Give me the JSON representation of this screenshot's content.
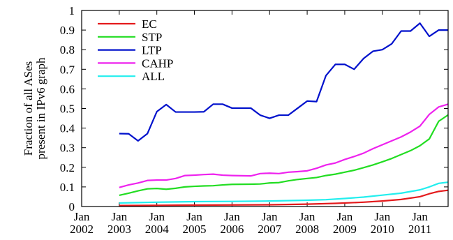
{
  "chart_data": {
    "type": "line",
    "title": "",
    "xlabel": "",
    "ylabel": [
      "Fraction of all ASes",
      "present in IPv6 graph"
    ],
    "xlim": [
      2002.0,
      2011.75
    ],
    "ylim": [
      0,
      1
    ],
    "grid": false,
    "legend_position": "top-left",
    "x_ticks": [
      {
        "value": 2002,
        "label": [
          "Jan",
          "2002"
        ]
      },
      {
        "value": 2003,
        "label": [
          "Jan",
          "2003"
        ]
      },
      {
        "value": 2004,
        "label": [
          "Jan",
          "2004"
        ]
      },
      {
        "value": 2005,
        "label": [
          "Jan",
          "2005"
        ]
      },
      {
        "value": 2006,
        "label": [
          "Jan",
          "2006"
        ]
      },
      {
        "value": 2007,
        "label": [
          "Jan",
          "2007"
        ]
      },
      {
        "value": 2008,
        "label": [
          "Jan",
          "2008"
        ]
      },
      {
        "value": 2009,
        "label": [
          "Jan",
          "2009"
        ]
      },
      {
        "value": 2010,
        "label": [
          "Jan",
          "2010"
        ]
      },
      {
        "value": 2011,
        "label": [
          "Jan",
          "2011"
        ]
      }
    ],
    "y_ticks": [
      {
        "value": 0,
        "label": "0"
      },
      {
        "value": 0.1,
        "label": "0.1"
      },
      {
        "value": 0.2,
        "label": "0.2"
      },
      {
        "value": 0.3,
        "label": "0.3"
      },
      {
        "value": 0.4,
        "label": "0.4"
      },
      {
        "value": 0.5,
        "label": "0.5"
      },
      {
        "value": 0.6,
        "label": "0.6"
      },
      {
        "value": 0.7,
        "label": "0.7"
      },
      {
        "value": 0.8,
        "label": "0.8"
      },
      {
        "value": 0.9,
        "label": "0.9"
      },
      {
        "value": 1,
        "label": "1"
      }
    ],
    "series": [
      {
        "name": "EC",
        "color": "#e41a1c",
        "points": [
          [
            2003.0,
            0.005
          ],
          [
            2004.0,
            0.006
          ],
          [
            2005.0,
            0.007
          ],
          [
            2006.0,
            0.008
          ],
          [
            2007.0,
            0.009
          ],
          [
            2008.0,
            0.012
          ],
          [
            2008.75,
            0.016
          ],
          [
            2009.5,
            0.022
          ],
          [
            2010.0,
            0.028
          ],
          [
            2010.5,
            0.036
          ],
          [
            2011.0,
            0.05
          ],
          [
            2011.25,
            0.065
          ],
          [
            2011.5,
            0.077
          ],
          [
            2011.75,
            0.083
          ]
        ]
      },
      {
        "name": "STP",
        "color": "#22dd22",
        "points": [
          [
            2003.0,
            0.057
          ],
          [
            2003.25,
            0.068
          ],
          [
            2003.5,
            0.08
          ],
          [
            2003.75,
            0.09
          ],
          [
            2004.0,
            0.092
          ],
          [
            2004.25,
            0.088
          ],
          [
            2004.5,
            0.093
          ],
          [
            2004.75,
            0.1
          ],
          [
            2005.0,
            0.103
          ],
          [
            2005.25,
            0.105
          ],
          [
            2005.5,
            0.106
          ],
          [
            2005.75,
            0.11
          ],
          [
            2006.0,
            0.113
          ],
          [
            2006.5,
            0.114
          ],
          [
            2006.75,
            0.115
          ],
          [
            2007.0,
            0.12
          ],
          [
            2007.25,
            0.122
          ],
          [
            2007.5,
            0.131
          ],
          [
            2007.75,
            0.138
          ],
          [
            2008.0,
            0.143
          ],
          [
            2008.25,
            0.148
          ],
          [
            2008.5,
            0.158
          ],
          [
            2008.75,
            0.165
          ],
          [
            2009.0,
            0.175
          ],
          [
            2009.25,
            0.185
          ],
          [
            2009.5,
            0.198
          ],
          [
            2009.75,
            0.212
          ],
          [
            2010.0,
            0.228
          ],
          [
            2010.25,
            0.245
          ],
          [
            2010.5,
            0.265
          ],
          [
            2010.75,
            0.285
          ],
          [
            2011.0,
            0.31
          ],
          [
            2011.25,
            0.345
          ],
          [
            2011.5,
            0.435
          ],
          [
            2011.75,
            0.467
          ]
        ]
      },
      {
        "name": "LTP",
        "color": "#0011cc",
        "points": [
          [
            2003.0,
            0.372
          ],
          [
            2003.25,
            0.371
          ],
          [
            2003.5,
            0.335
          ],
          [
            2003.75,
            0.372
          ],
          [
            2004.0,
            0.484
          ],
          [
            2004.25,
            0.52
          ],
          [
            2004.5,
            0.482
          ],
          [
            2005.0,
            0.482
          ],
          [
            2005.25,
            0.483
          ],
          [
            2005.5,
            0.522
          ],
          [
            2005.75,
            0.522
          ],
          [
            2006.0,
            0.502
          ],
          [
            2006.25,
            0.502
          ],
          [
            2006.5,
            0.502
          ],
          [
            2006.75,
            0.466
          ],
          [
            2007.0,
            0.45
          ],
          [
            2007.25,
            0.466
          ],
          [
            2007.5,
            0.466
          ],
          [
            2007.75,
            0.502
          ],
          [
            2008.0,
            0.538
          ],
          [
            2008.25,
            0.535
          ],
          [
            2008.5,
            0.668
          ],
          [
            2008.75,
            0.725
          ],
          [
            2009.0,
            0.725
          ],
          [
            2009.25,
            0.7
          ],
          [
            2009.5,
            0.755
          ],
          [
            2009.75,
            0.792
          ],
          [
            2010.0,
            0.8
          ],
          [
            2010.25,
            0.83
          ],
          [
            2010.5,
            0.895
          ],
          [
            2010.75,
            0.895
          ],
          [
            2011.0,
            0.935
          ],
          [
            2011.25,
            0.868
          ],
          [
            2011.5,
            0.9
          ],
          [
            2011.75,
            0.9
          ]
        ]
      },
      {
        "name": "CAHP",
        "color": "#ee22ee",
        "points": [
          [
            2003.0,
            0.097
          ],
          [
            2003.25,
            0.11
          ],
          [
            2003.5,
            0.12
          ],
          [
            2003.75,
            0.133
          ],
          [
            2004.0,
            0.135
          ],
          [
            2004.25,
            0.135
          ],
          [
            2004.5,
            0.143
          ],
          [
            2004.75,
            0.158
          ],
          [
            2005.0,
            0.16
          ],
          [
            2005.25,
            0.163
          ],
          [
            2005.5,
            0.165
          ],
          [
            2005.75,
            0.16
          ],
          [
            2006.0,
            0.158
          ],
          [
            2006.5,
            0.156
          ],
          [
            2006.75,
            0.168
          ],
          [
            2007.0,
            0.17
          ],
          [
            2007.25,
            0.168
          ],
          [
            2007.5,
            0.175
          ],
          [
            2007.75,
            0.178
          ],
          [
            2008.0,
            0.182
          ],
          [
            2008.25,
            0.195
          ],
          [
            2008.5,
            0.212
          ],
          [
            2008.75,
            0.222
          ],
          [
            2009.0,
            0.24
          ],
          [
            2009.25,
            0.255
          ],
          [
            2009.5,
            0.272
          ],
          [
            2009.75,
            0.295
          ],
          [
            2010.0,
            0.315
          ],
          [
            2010.25,
            0.335
          ],
          [
            2010.5,
            0.355
          ],
          [
            2010.75,
            0.38
          ],
          [
            2011.0,
            0.41
          ],
          [
            2011.25,
            0.47
          ],
          [
            2011.5,
            0.508
          ],
          [
            2011.75,
            0.522
          ]
        ]
      },
      {
        "name": "ALL",
        "color": "#22eeee",
        "points": [
          [
            2003.0,
            0.018
          ],
          [
            2003.5,
            0.02
          ],
          [
            2004.0,
            0.022
          ],
          [
            2005.0,
            0.025
          ],
          [
            2006.0,
            0.026
          ],
          [
            2007.0,
            0.028
          ],
          [
            2008.0,
            0.032
          ],
          [
            2008.5,
            0.035
          ],
          [
            2009.0,
            0.041
          ],
          [
            2009.5,
            0.048
          ],
          [
            2010.0,
            0.058
          ],
          [
            2010.5,
            0.068
          ],
          [
            2011.0,
            0.085
          ],
          [
            2011.25,
            0.1
          ],
          [
            2011.5,
            0.118
          ],
          [
            2011.75,
            0.124
          ]
        ]
      }
    ]
  }
}
